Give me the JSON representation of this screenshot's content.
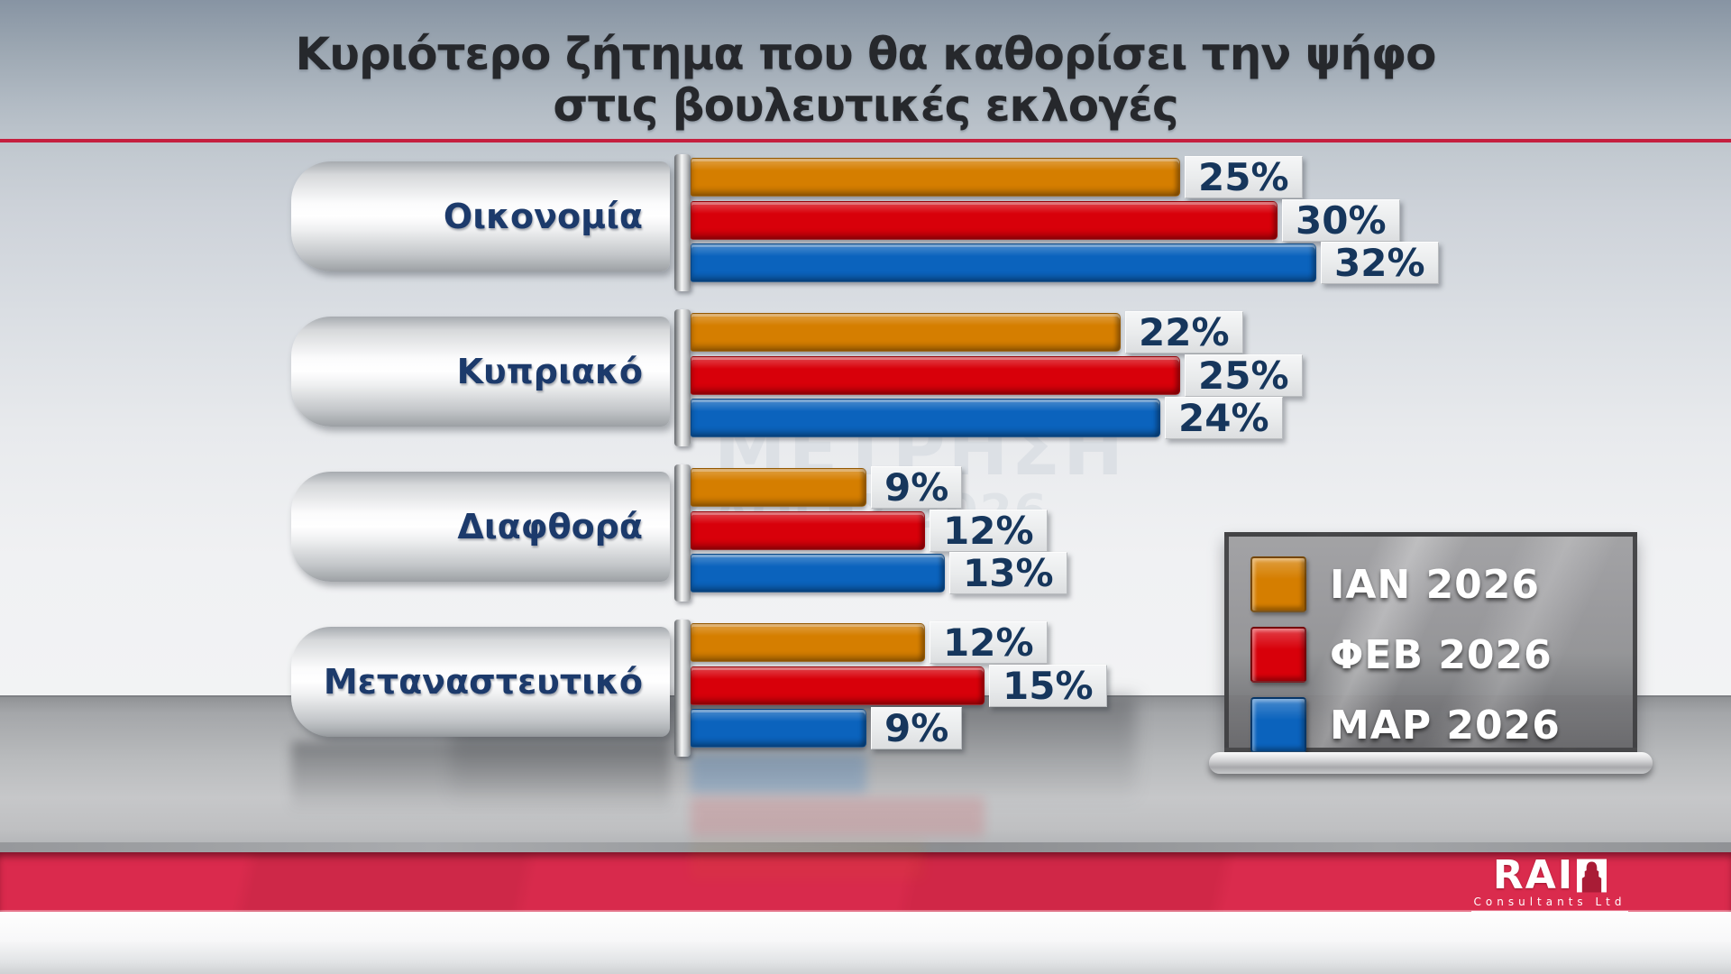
{
  "title": {
    "line1": "Κυριότερο ζήτημα που θα καθορίσει την ψήφο",
    "line2": "στις βουλευτικές εκλογές"
  },
  "watermark": {
    "line1": "ΜΕΤΡΗΣΗ",
    "line2": "ΕΚΛΟΓΕΣ 2026"
  },
  "chart_data": {
    "type": "bar",
    "orientation": "horizontal",
    "title": "Κυριότερο ζήτημα που θα καθορίσει την ψήφο στις βουλευτικές εκλογές",
    "categories": [
      "Οικονομία",
      "Κυπριακό",
      "Διαφθορά",
      "Μεταναστευτικό"
    ],
    "series": [
      {
        "name": "ΙΑΝ 2026",
        "color": "#D57E00",
        "values": [
          25,
          22,
          9,
          12
        ]
      },
      {
        "name": "ΦΕΒ 2026",
        "color": "#D8000A",
        "values": [
          30,
          25,
          12,
          15
        ]
      },
      {
        "name": "ΜΑΡ 2026",
        "color": "#0B63BD",
        "values": [
          32,
          24,
          13,
          9
        ]
      }
    ],
    "value_suffix": "%",
    "value_labels": true,
    "xlim": [
      0,
      35
    ],
    "grid": false,
    "legend_position": "bottom-right"
  },
  "footer": {
    "brand": "RAI",
    "brand_sub": "Consultants Ltd"
  },
  "colors": {
    "band_red": "#D52A4C",
    "separator_red": "#C5203F",
    "value_text": "#16365C",
    "category_text": "#1C3A6B",
    "legend_text": "#FFFFFF"
  }
}
